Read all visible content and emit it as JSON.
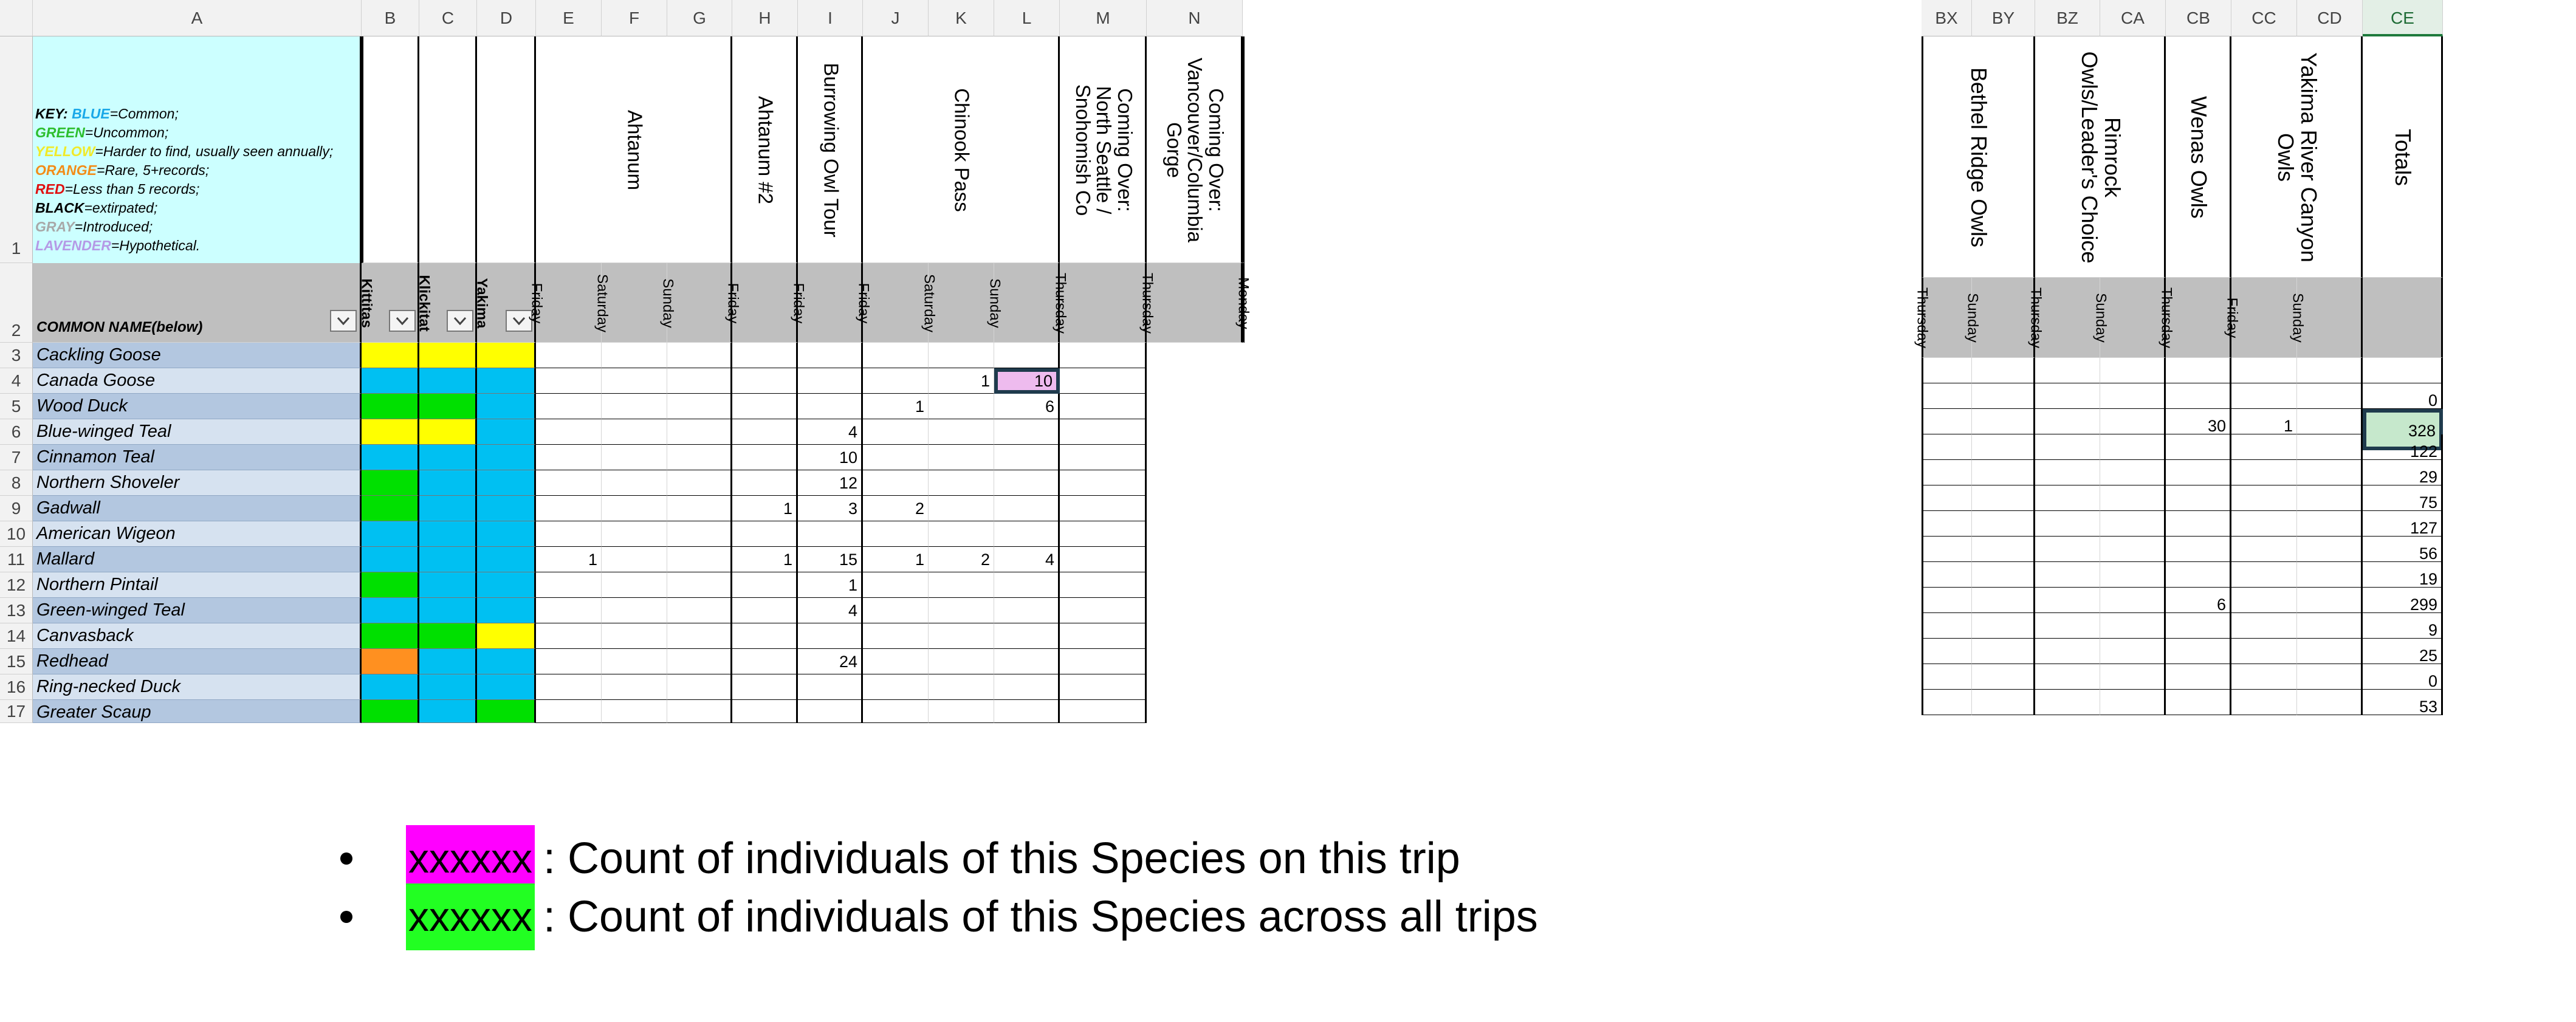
{
  "left": {
    "columns": [
      "A",
      "B",
      "C",
      "D",
      "E",
      "F",
      "G",
      "H",
      "I",
      "J",
      "K",
      "L",
      "M",
      "N"
    ],
    "row_numbers": [
      "1",
      "2",
      "3",
      "4",
      "5",
      "6",
      "7",
      "8",
      "9",
      "10",
      "11",
      "12",
      "13",
      "14",
      "15",
      "16",
      "17"
    ],
    "key": {
      "prefix": "KEY:",
      "lines": [
        {
          "label": "BLUE",
          "text": "=Common;",
          "color": "#1aa8e8"
        },
        {
          "label": "GREEN",
          "text": "=Uncommon;",
          "color": "#2dbe2d"
        },
        {
          "label": "YELLOW",
          "text": "=Harder to find, usually seen annually;",
          "color": "#f0ea2a"
        },
        {
          "label": "ORANGE",
          "text": "=Rare, 5+records;",
          "color": "#f28c18"
        },
        {
          "label": "RED",
          "text": "=Less than 5 records;",
          "color": "#e01010"
        },
        {
          "label": "BLACK",
          "text": "=extirpated;",
          "color": "#000000"
        },
        {
          "label": "GRAY",
          "text": "=Introduced;",
          "color": "#a8a8a8"
        },
        {
          "label": "LAVENDER",
          "text": "=Hypothetical.",
          "color": "#b59ae6"
        }
      ]
    },
    "common_name_header": "COMMON NAME(below)",
    "county_headers": [
      "Kittitas",
      "Klickitat",
      "Yakima"
    ],
    "trips": [
      {
        "name": "Ahtanum",
        "days": [
          "Friday",
          "Saturday",
          "Sunday"
        ]
      },
      {
        "name": "Ahtanum #2",
        "days": [
          "Friday"
        ]
      },
      {
        "name": "Burrowing Owl Tour",
        "days": [
          "Friday"
        ]
      },
      {
        "name": "Chinook Pass",
        "days": [
          "Friday",
          "Saturday",
          "Sunday"
        ]
      },
      {
        "name": "Coming Over:\nNorth Seattle /\nSnohomish Co",
        "days": [
          "Thursday"
        ]
      },
      {
        "name": "Coming Over:\nVancouver/Columbia\nGorge",
        "days": [
          "Thursday"
        ]
      },
      {
        "name": "",
        "days": [
          "Monday"
        ]
      }
    ],
    "species": [
      {
        "name": "Cackling Goose",
        "status": [
          "yellow",
          "yellow",
          "yellow"
        ],
        "counts": [
          "",
          "",
          "",
          "",
          "",
          "",
          "",
          "",
          ""
        ]
      },
      {
        "name": "Canada Goose",
        "status": [
          "blue",
          "blue",
          "blue"
        ],
        "counts": [
          "",
          "",
          "",
          "",
          "",
          "",
          "1",
          "10",
          ""
        ]
      },
      {
        "name": "Wood Duck",
        "status": [
          "green",
          "green",
          "blue"
        ],
        "counts": [
          "",
          "",
          "",
          "",
          "",
          "1",
          "",
          "6",
          ""
        ]
      },
      {
        "name": "Blue-winged Teal",
        "status": [
          "yellow",
          "yellow",
          "blue"
        ],
        "counts": [
          "",
          "",
          "",
          "",
          "4",
          "",
          "",
          "",
          ""
        ]
      },
      {
        "name": "Cinnamon Teal",
        "status": [
          "blue",
          "blue",
          "blue"
        ],
        "counts": [
          "",
          "",
          "",
          "",
          "10",
          "",
          "",
          "",
          ""
        ]
      },
      {
        "name": "Northern Shoveler",
        "status": [
          "green",
          "blue",
          "blue"
        ],
        "counts": [
          "",
          "",
          "",
          "",
          "12",
          "",
          "",
          "",
          ""
        ]
      },
      {
        "name": "Gadwall",
        "status": [
          "green",
          "blue",
          "blue"
        ],
        "counts": [
          "",
          "",
          "",
          "1",
          "3",
          "2",
          "",
          "",
          ""
        ]
      },
      {
        "name": "American Wigeon",
        "status": [
          "blue",
          "blue",
          "blue"
        ],
        "counts": [
          "",
          "",
          "",
          "",
          "",
          "",
          "",
          "",
          ""
        ]
      },
      {
        "name": "Mallard",
        "status": [
          "blue",
          "blue",
          "blue"
        ],
        "counts": [
          "1",
          "",
          "",
          "1",
          "15",
          "1",
          "2",
          "4",
          ""
        ]
      },
      {
        "name": "Northern Pintail",
        "status": [
          "green",
          "blue",
          "blue"
        ],
        "counts": [
          "",
          "",
          "",
          "",
          "1",
          "",
          "",
          "",
          ""
        ]
      },
      {
        "name": "Green-winged Teal",
        "status": [
          "blue",
          "blue",
          "blue"
        ],
        "counts": [
          "",
          "",
          "",
          "",
          "4",
          "",
          "",
          "",
          ""
        ]
      },
      {
        "name": "Canvasback",
        "status": [
          "green",
          "green",
          "yellow"
        ],
        "counts": [
          "",
          "",
          "",
          "",
          "",
          "",
          "",
          "",
          ""
        ]
      },
      {
        "name": "Redhead",
        "status": [
          "orange",
          "blue",
          "blue"
        ],
        "counts": [
          "",
          "",
          "",
          "",
          "24",
          "",
          "",
          "",
          ""
        ]
      },
      {
        "name": "Ring-necked Duck",
        "status": [
          "blue",
          "blue",
          "blue"
        ],
        "counts": [
          "",
          "",
          "",
          "",
          "",
          "",
          "",
          "",
          ""
        ]
      },
      {
        "name": "Greater Scaup",
        "status": [
          "green",
          "blue",
          "green"
        ],
        "counts": [
          "",
          "",
          "",
          "",
          "",
          "",
          "",
          "",
          ""
        ]
      }
    ]
  },
  "right": {
    "columns": [
      "BX",
      "BY",
      "BZ",
      "CA",
      "CB",
      "CC",
      "CD",
      "CE"
    ],
    "trips": [
      {
        "name": "Bethel Ridge Owls",
        "days": [
          "Thursday",
          "Sunday"
        ]
      },
      {
        "name": "Rimrock\nOwls/Leader's Choice",
        "days": [
          "Thursday",
          "Sunday"
        ]
      },
      {
        "name": "Wenas Owls",
        "days": [
          "Thursday"
        ]
      },
      {
        "name": "Yakima River Canyon\nOwls",
        "days": [
          "Friday",
          "Sunday"
        ]
      },
      {
        "name": "Totals",
        "days": [
          ""
        ]
      }
    ],
    "rows": [
      {
        "counts": [
          "",
          "",
          "",
          "",
          "",
          "",
          "",
          ""
        ]
      },
      {
        "counts": [
          "",
          "",
          "",
          "",
          "",
          "",
          "",
          "0"
        ]
      },
      {
        "counts": [
          "",
          "",
          "",
          "",
          "30",
          "1",
          "",
          "328"
        ]
      },
      {
        "counts": [
          "",
          "",
          "",
          "",
          "",
          "",
          "",
          "122"
        ]
      },
      {
        "counts": [
          "",
          "",
          "",
          "",
          "",
          "",
          "",
          "29"
        ]
      },
      {
        "counts": [
          "",
          "",
          "",
          "",
          "",
          "",
          "",
          "75"
        ]
      },
      {
        "counts": [
          "",
          "",
          "",
          "",
          "",
          "",
          "",
          "127"
        ]
      },
      {
        "counts": [
          "",
          "",
          "",
          "",
          "",
          "",
          "",
          "56"
        ]
      },
      {
        "counts": [
          "",
          "",
          "",
          "",
          "",
          "",
          "",
          "19"
        ]
      },
      {
        "counts": [
          "",
          "",
          "",
          "",
          "6",
          "",
          "",
          "299"
        ]
      },
      {
        "counts": [
          "",
          "",
          "",
          "",
          "",
          "",
          "",
          "9"
        ]
      },
      {
        "counts": [
          "",
          "",
          "",
          "",
          "",
          "",
          "",
          "25"
        ]
      },
      {
        "counts": [
          "",
          "",
          "",
          "",
          "",
          "",
          "",
          "0"
        ]
      },
      {
        "counts": [
          "",
          "",
          "",
          "",
          "",
          "",
          "",
          "53"
        ]
      }
    ]
  },
  "legend": [
    {
      "swatch_text": "xxxxxx",
      "color": "#ff00ff",
      "text": ": Count of individuals of this Species on this trip"
    },
    {
      "swatch_text": "xxxxxx",
      "color": "#22ff22",
      "text": ": Count of individuals of this Species across all trips"
    }
  ],
  "colors": {
    "blue": "#00c0f2",
    "green": "#00e000",
    "yellow": "#ffff00",
    "orange": "#ff9020",
    "key_bg": "#ccffff",
    "name_bg": "#b7cce4",
    "header_gray": "#bfbfbf",
    "trip_highlight": "#eebbee",
    "total_highlight": "#c6e8cc"
  }
}
